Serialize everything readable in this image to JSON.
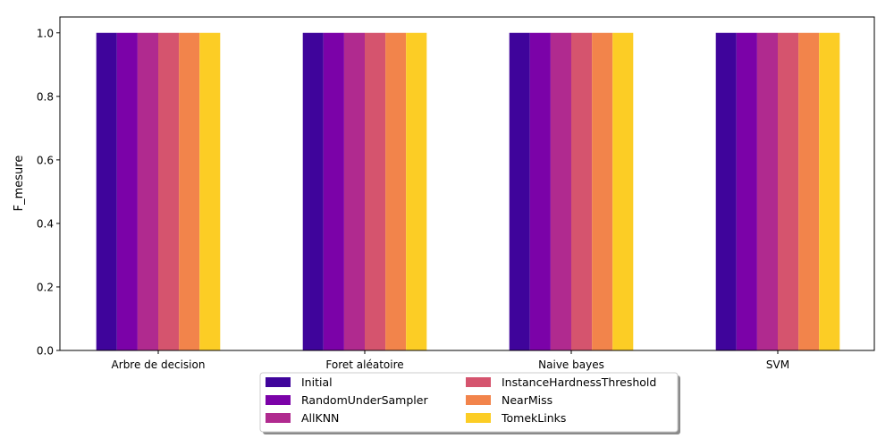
{
  "chart_data": {
    "type": "bar",
    "title": "",
    "xlabel": "",
    "ylabel": "F_mesure",
    "ylim": [
      0,
      1.05
    ],
    "yticks": [
      0.0,
      0.2,
      0.4,
      0.6,
      0.8,
      1.0
    ],
    "ytick_labels": [
      "0.0",
      "0.2",
      "0.4",
      "0.6",
      "0.8",
      "1.0"
    ],
    "categories": [
      "Arbre de decision",
      "Foret aléatoire",
      "Naive bayes",
      "SVM"
    ],
    "series": [
      {
        "name": "Initial",
        "color": "#3f049b",
        "values": [
          1.0,
          1.0,
          1.0,
          1.0
        ]
      },
      {
        "name": "RandomUnderSampler",
        "color": "#7b02a8",
        "values": [
          1.0,
          1.0,
          1.0,
          1.0
        ]
      },
      {
        "name": "AllKNN",
        "color": "#b02a8f",
        "values": [
          1.0,
          1.0,
          1.0,
          1.0
        ]
      },
      {
        "name": "InstanceHardnessThreshold",
        "color": "#d5546e",
        "values": [
          1.0,
          1.0,
          1.0,
          1.0
        ]
      },
      {
        "name": "NearMiss",
        "color": "#f2844b",
        "values": [
          1.0,
          1.0,
          1.0,
          1.0
        ]
      },
      {
        "name": "TomekLinks",
        "color": "#fccd25",
        "values": [
          1.0,
          1.0,
          1.0,
          1.0
        ]
      }
    ],
    "legend": {
      "position": "bottom-center",
      "columns": 2,
      "shadow": true
    },
    "grid": false
  }
}
